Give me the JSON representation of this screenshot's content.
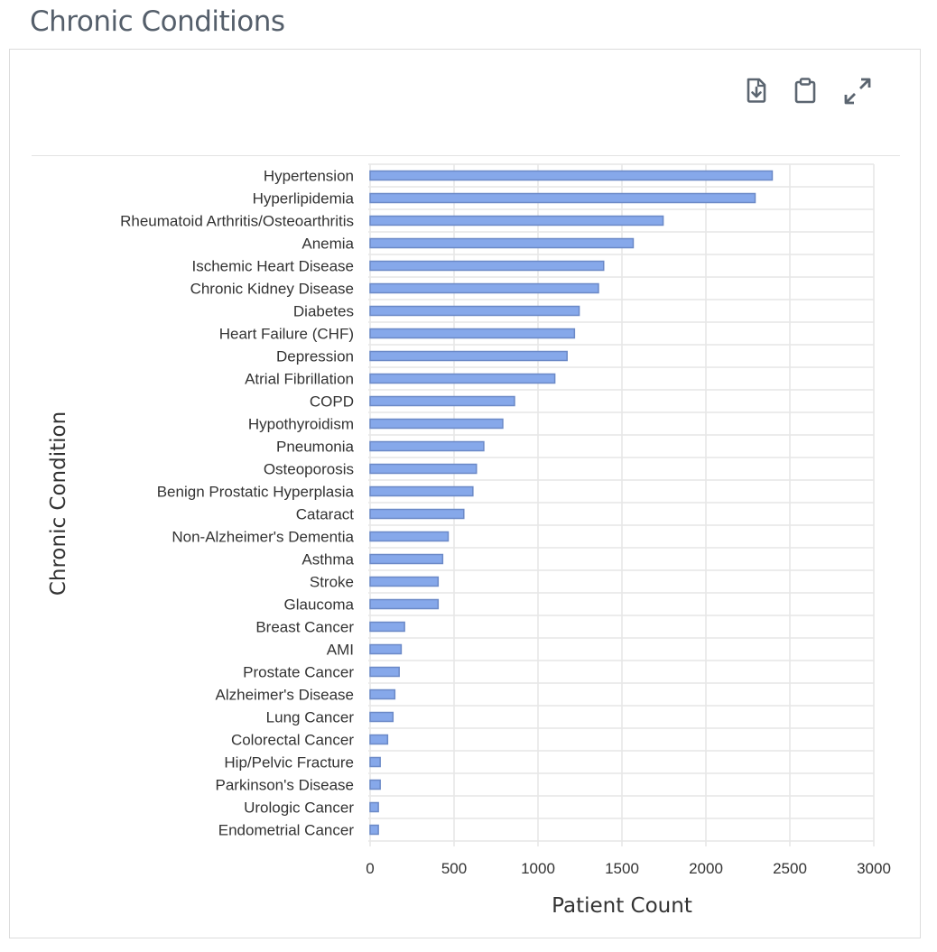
{
  "page": {
    "title": "Chronic Conditions"
  },
  "toolbar": {
    "icons": [
      "download-file-icon",
      "clipboard-icon",
      "expand-icon"
    ]
  },
  "colors": {
    "bar_fill": "#86a8ea",
    "bar_stroke": "#6b89c7",
    "grid": "#e6e6e6",
    "title": "#555f6b",
    "icon": "#5b6570"
  },
  "chart_data": {
    "type": "bar",
    "orientation": "horizontal",
    "xlabel": "Patient Count",
    "ylabel": "Chronic Condition",
    "xlim": [
      0,
      3000
    ],
    "xticks": [
      0,
      500,
      1000,
      1500,
      2000,
      2500,
      3000
    ],
    "grid": true,
    "categories": [
      "Hypertension",
      "Hyperlipidemia",
      "Rheumatoid Arthritis/Osteoarthritis",
      "Anemia",
      "Ischemic Heart Disease",
      "Chronic Kidney Disease",
      "Diabetes",
      "Heart Failure (CHF)",
      "Depression",
      "Atrial Fibrillation",
      "COPD",
      "Hypothyroidism",
      "Pneumonia",
      "Osteoporosis",
      "Benign Prostatic Hyperplasia",
      "Cataract",
      "Non-Alzheimer's Dementia",
      "Asthma",
      "Stroke",
      "Glaucoma",
      "Breast Cancer",
      "AMI",
      "Prostate Cancer",
      "Alzheimer's Disease",
      "Lung Cancer",
      "Colorectal Cancer",
      "Hip/Pelvic Fracture",
      "Parkinson's Disease",
      "Urologic Cancer",
      "Endometrial Cancer"
    ],
    "values": [
      2395,
      2293,
      1745,
      1567,
      1391,
      1360,
      1245,
      1217,
      1173,
      1100,
      860,
      790,
      677,
      633,
      612,
      558,
      465,
      432,
      405,
      405,
      205,
      185,
      173,
      147,
      136,
      104,
      60,
      60,
      49,
      49
    ]
  }
}
